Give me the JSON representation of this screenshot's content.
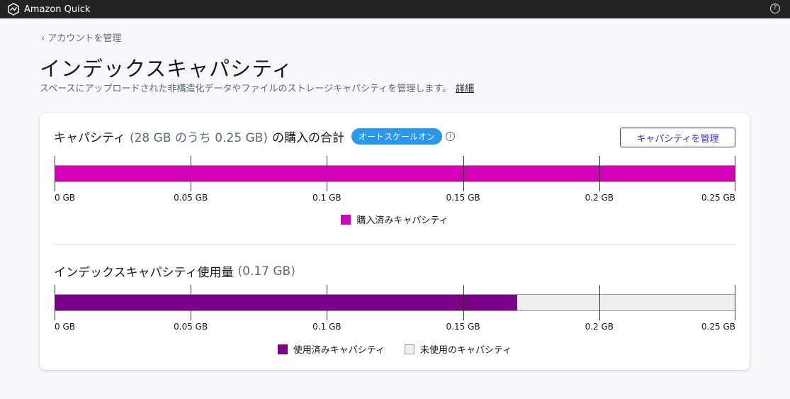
{
  "app": {
    "title": "Amazon Quick",
    "help_icon": "help-circle-icon"
  },
  "breadcrumb": {
    "back_label": "アカウントを管理"
  },
  "page": {
    "title": "インデックスキャパシティ",
    "description": "スペースにアップロードされた非構造化データやファイルのストレージキャパシティを管理します。",
    "details_link": "詳細"
  },
  "purchased": {
    "title_prefix": "キャパシティ",
    "title_muted": "(28 GB のうち 0.25 GB)",
    "title_suffix": "の購入の合計",
    "badge": "オートスケールオン",
    "manage_button": "キャパシティを管理",
    "ticks": [
      "0 GB",
      "0.05 GB",
      "0.1 GB",
      "0.15 GB",
      "0.2 GB",
      "0.25 GB"
    ],
    "max_gb": 0.25,
    "value_gb": 0.25,
    "color": "#d400b8",
    "legend": [
      "購入済みキャパシティ"
    ]
  },
  "usage": {
    "title": "インデックスキャパシティ使用量",
    "title_muted": "(0.17 GB)",
    "ticks": [
      "0 GB",
      "0.05 GB",
      "0.1 GB",
      "0.15 GB",
      "0.2 GB",
      "0.25 GB"
    ],
    "max_gb": 0.25,
    "value_gb": 0.17,
    "color": "#7a0088",
    "unused_color": "#efefef",
    "legend": [
      "使用済みキャパシティ",
      "未使用のキャパシティ"
    ]
  }
}
